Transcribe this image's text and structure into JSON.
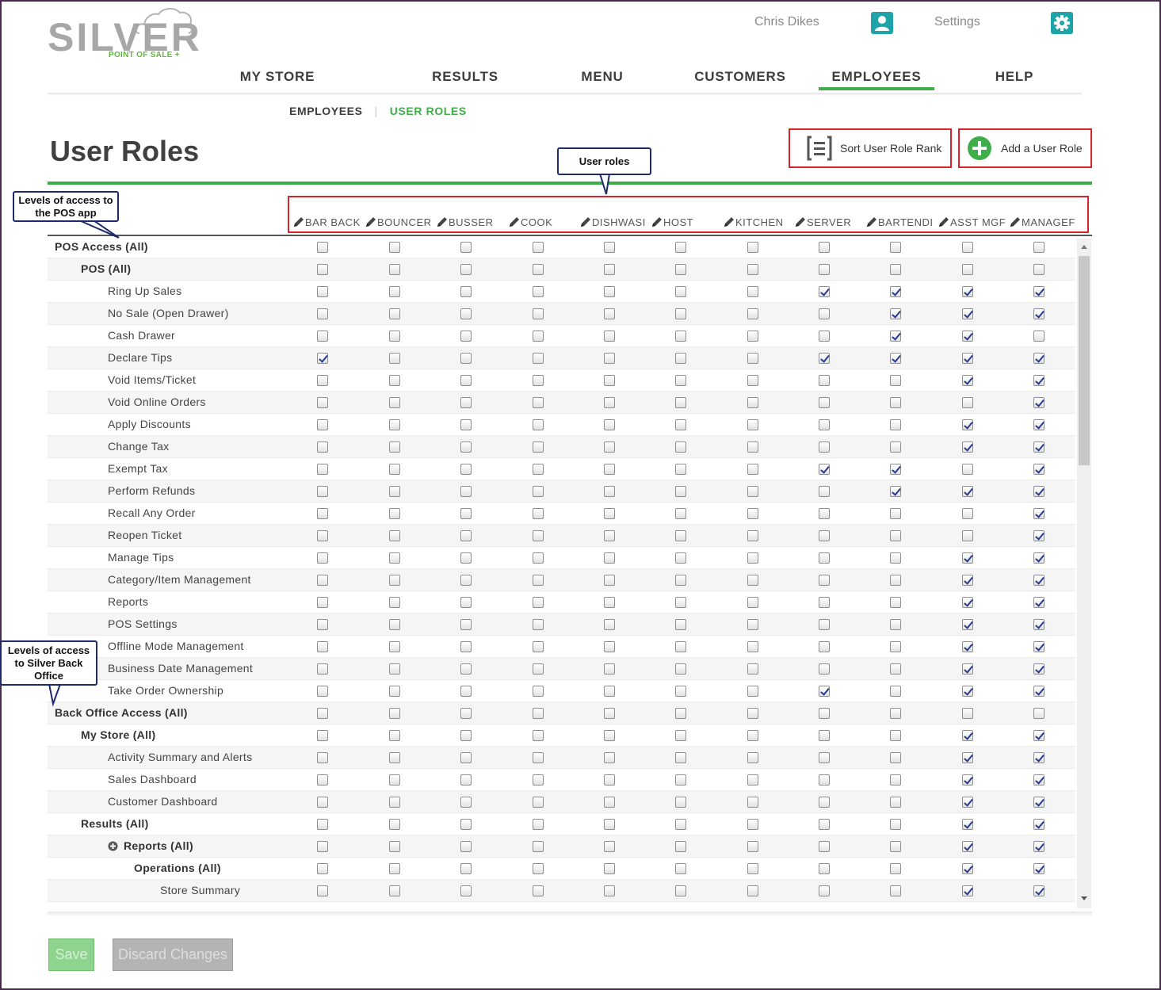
{
  "brand": {
    "name": "SILVER",
    "tagline": "POINT OF SALE +"
  },
  "topbar": {
    "user_name": "Chris Dikes",
    "user_icon": "user-icon",
    "settings_label": "Settings",
    "settings_icon": "gear-icon"
  },
  "nav": {
    "items": [
      {
        "label": "MY STORE"
      },
      {
        "label": "RESULTS"
      },
      {
        "label": "MENU"
      },
      {
        "label": "CUSTOMERS"
      },
      {
        "label": "EMPLOYEES"
      },
      {
        "label": "HELP"
      }
    ],
    "active": "EMPLOYEES"
  },
  "subnav": {
    "items": [
      {
        "label": "EMPLOYEES"
      },
      {
        "label": "USER ROLES"
      }
    ],
    "active": "USER ROLES"
  },
  "page": {
    "title": "User Roles",
    "sort_button_label": "Sort User Role Rank",
    "add_button_label": "Add a User Role"
  },
  "roles": [
    "BAR BACK",
    "BOUNCER",
    "BUSSER",
    "COOK",
    "DISHWASI",
    "HOST",
    "KITCHEN",
    "SERVER",
    "BARTENDI",
    "ASST MGF",
    "MANAGEF"
  ],
  "permissions": [
    {
      "label": "POS Access (All)",
      "level": 0,
      "bold": true,
      "checked": []
    },
    {
      "label": "POS (All)",
      "level": 1,
      "bold": true,
      "checked": []
    },
    {
      "label": "Ring Up Sales",
      "level": 2,
      "bold": false,
      "checked": [
        7,
        8,
        9,
        10
      ]
    },
    {
      "label": "No Sale (Open Drawer)",
      "level": 2,
      "bold": false,
      "checked": [
        8,
        9,
        10
      ]
    },
    {
      "label": "Cash Drawer",
      "level": 2,
      "bold": false,
      "checked": [
        8,
        9
      ]
    },
    {
      "label": "Declare Tips",
      "level": 2,
      "bold": false,
      "checked": [
        0,
        7,
        8,
        9,
        10
      ]
    },
    {
      "label": "Void Items/Ticket",
      "level": 2,
      "bold": false,
      "checked": [
        9,
        10
      ]
    },
    {
      "label": "Void Online Orders",
      "level": 2,
      "bold": false,
      "checked": [
        10
      ]
    },
    {
      "label": "Apply Discounts",
      "level": 2,
      "bold": false,
      "checked": [
        9,
        10
      ]
    },
    {
      "label": "Change Tax",
      "level": 2,
      "bold": false,
      "checked": [
        9,
        10
      ]
    },
    {
      "label": "Exempt Tax",
      "level": 2,
      "bold": false,
      "checked": [
        7,
        8,
        10
      ]
    },
    {
      "label": "Perform Refunds",
      "level": 2,
      "bold": false,
      "checked": [
        8,
        9,
        10
      ]
    },
    {
      "label": "Recall Any Order",
      "level": 2,
      "bold": false,
      "checked": [
        10
      ]
    },
    {
      "label": "Reopen Ticket",
      "level": 2,
      "bold": false,
      "checked": [
        10
      ]
    },
    {
      "label": "Manage Tips",
      "level": 2,
      "bold": false,
      "checked": [
        9,
        10
      ]
    },
    {
      "label": "Category/Item Management",
      "level": 2,
      "bold": false,
      "checked": [
        9,
        10
      ]
    },
    {
      "label": "Reports",
      "level": 2,
      "bold": false,
      "checked": [
        9,
        10
      ]
    },
    {
      "label": "POS Settings",
      "level": 2,
      "bold": false,
      "checked": [
        9,
        10
      ]
    },
    {
      "label": "Offline Mode Management",
      "level": 2,
      "bold": false,
      "checked": [
        9,
        10
      ]
    },
    {
      "label": "Business Date Management",
      "level": 2,
      "bold": false,
      "checked": [
        9,
        10
      ]
    },
    {
      "label": "Take Order Ownership",
      "level": 2,
      "bold": false,
      "checked": [
        7,
        9,
        10
      ]
    },
    {
      "label": "Back Office Access (All)",
      "level": 0,
      "bold": true,
      "checked": []
    },
    {
      "label": "My Store (All)",
      "level": 1,
      "bold": true,
      "checked": [
        9,
        10
      ]
    },
    {
      "label": "Activity Summary and Alerts",
      "level": 2,
      "bold": false,
      "checked": [
        9,
        10
      ]
    },
    {
      "label": "Sales Dashboard",
      "level": 2,
      "bold": false,
      "checked": [
        9,
        10
      ]
    },
    {
      "label": "Customer Dashboard",
      "level": 2,
      "bold": false,
      "checked": [
        9,
        10
      ]
    },
    {
      "label": "Results (All)",
      "level": 1,
      "bold": true,
      "checked": [
        9,
        10
      ]
    },
    {
      "label": "Reports (All)",
      "level": 2,
      "bold": true,
      "expand_icon": "plus-circle-icon",
      "checked": [
        9,
        10
      ]
    },
    {
      "label": "Operations (All)",
      "level": 3,
      "bold": true,
      "checked": [
        9,
        10
      ]
    },
    {
      "label": "Store Summary",
      "level": 4,
      "bold": false,
      "checked": [
        9,
        10
      ]
    },
    {
      "label": "",
      "level": 4,
      "bold": false,
      "checked": [
        9,
        10
      ]
    }
  ],
  "scrollbar": {
    "thumb_fraction": 0.33
  },
  "footer": {
    "save_label": "Save",
    "discard_label": "Discard Changes"
  },
  "annotations": {
    "user_roles": "User roles",
    "pos_levels": "Levels of access to the POS app",
    "backoffice_levels": "Levels of access to Silver Back Office"
  },
  "colors": {
    "accent_green": "#3fae49",
    "teal_icon": "#1ea3a8",
    "highlight_red": "#d8232a",
    "callout_border": "#1d2a6b",
    "frame": "#4a2a4f"
  }
}
